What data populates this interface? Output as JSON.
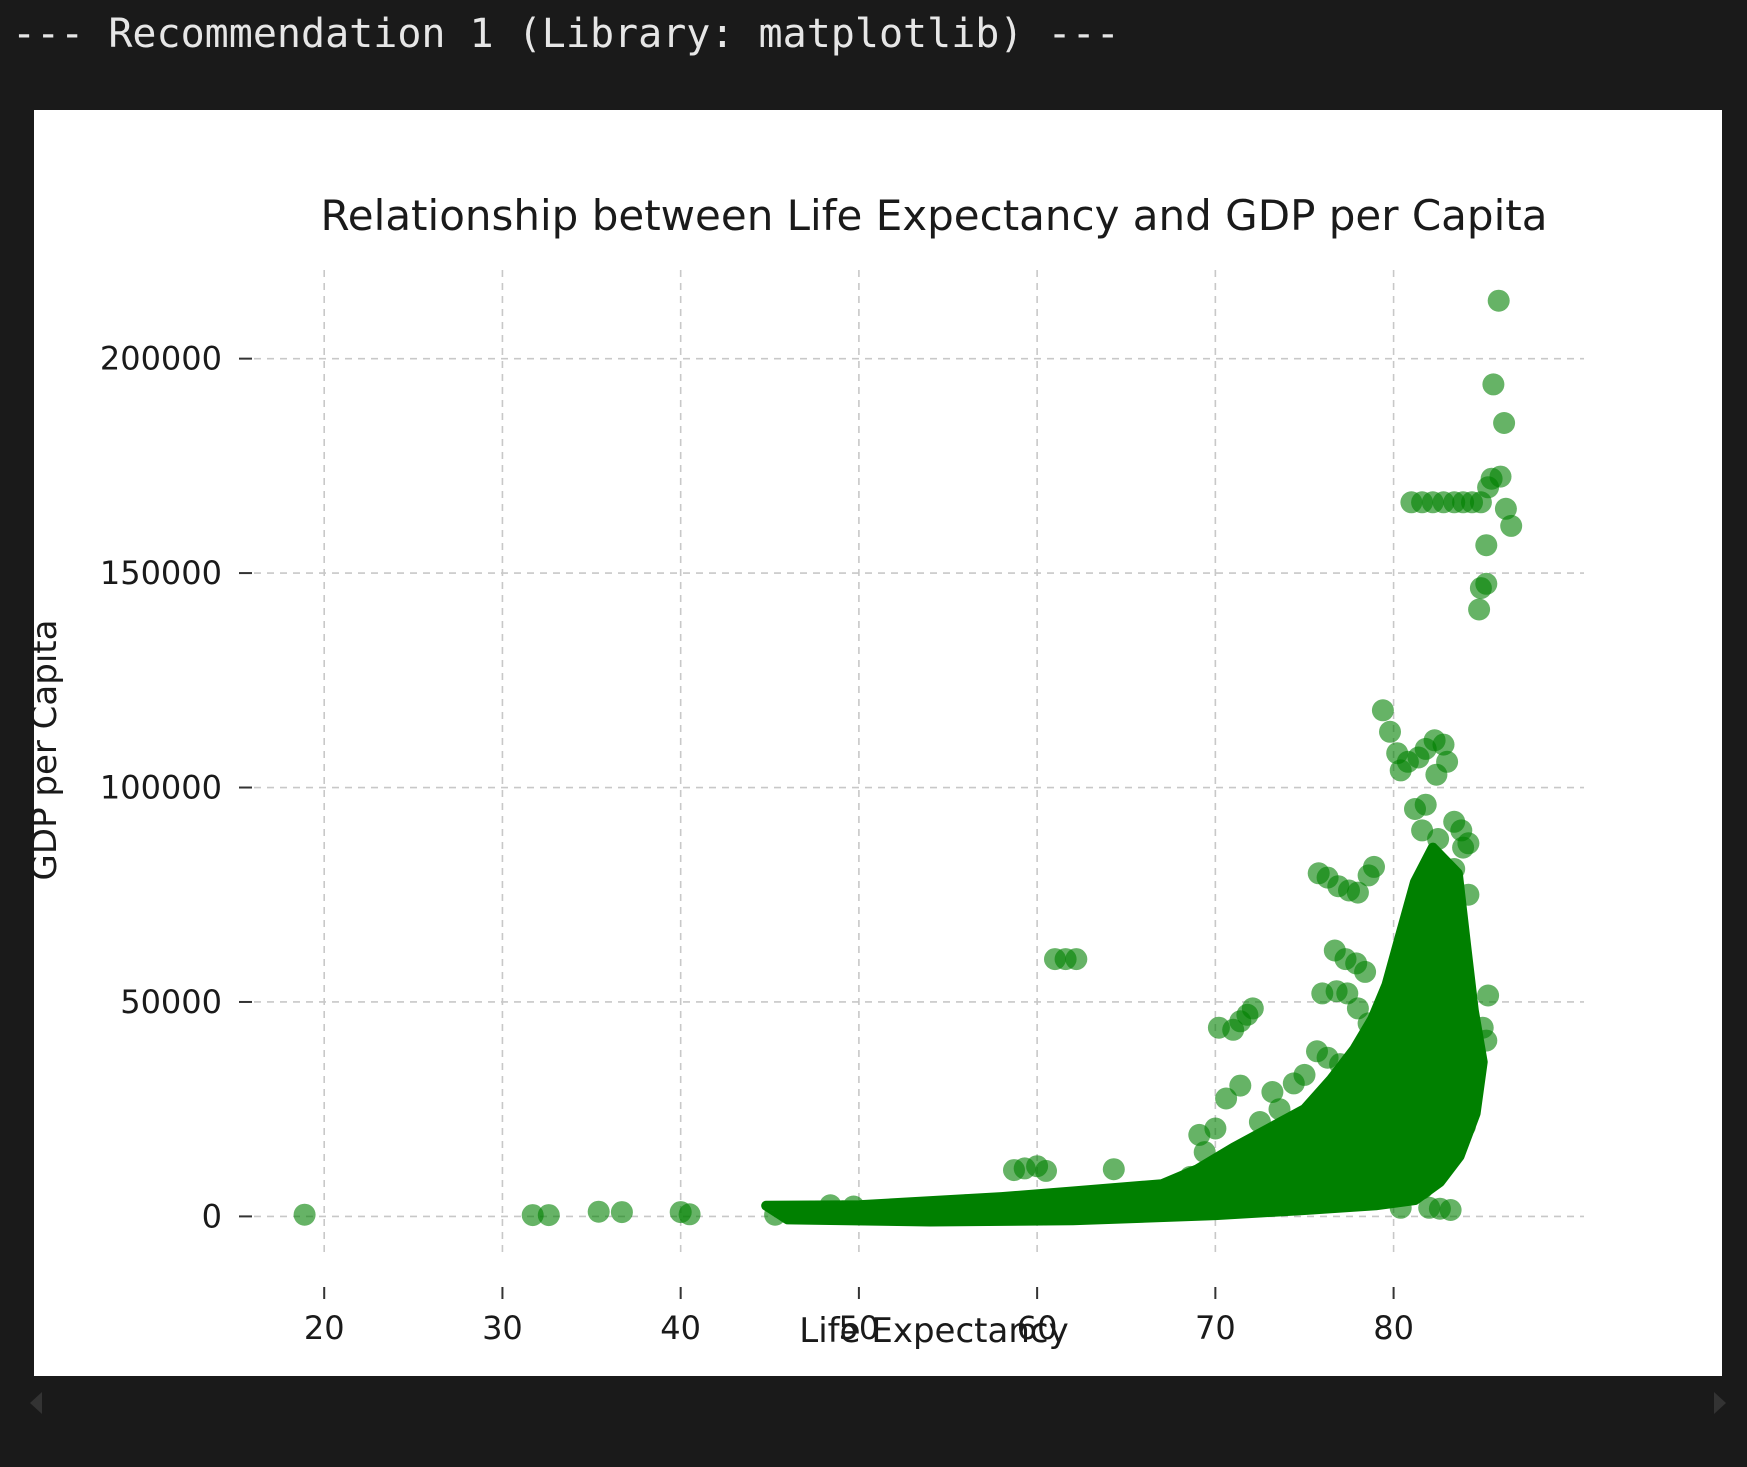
{
  "output": {
    "header": "--- Recommendation 1 (Library: matplotlib) ---"
  },
  "chart_data": {
    "type": "scatter",
    "title": "Relationship between Life Expectancy and GDP per Capita",
    "xlabel": "Life Expectancy",
    "ylabel": "GDP per Capita",
    "xlim": [
      15.5,
      89
    ],
    "ylim": [
      -9000,
      223000
    ],
    "xticks": [
      "20",
      "30",
      "40",
      "50",
      "60",
      "70",
      "80"
    ],
    "yticks": [
      "0",
      "50000",
      "100000",
      "150000",
      "200000"
    ],
    "grid": true,
    "marker_color": "#008000",
    "marker_alpha": 0.6,
    "series": [
      {
        "values": [
          [
            18.9,
            400
          ],
          [
            31.7,
            300
          ],
          [
            32.6,
            300
          ],
          [
            35.4,
            1100
          ],
          [
            36.7,
            1000
          ],
          [
            40.0,
            1000
          ],
          [
            40.5,
            500
          ],
          [
            45.3,
            400
          ],
          [
            46.0,
            900
          ],
          [
            47.1,
            700
          ],
          [
            48.4,
            2600
          ],
          [
            49.1,
            1200
          ],
          [
            49.7,
            2300
          ],
          [
            51.0,
            800
          ],
          [
            52.2,
            1500
          ],
          [
            53.4,
            900
          ],
          [
            54.6,
            1800
          ],
          [
            56.0,
            2600
          ],
          [
            57.1,
            1900
          ],
          [
            58.4,
            2400
          ],
          [
            58.7,
            10800
          ],
          [
            59.3,
            11200
          ],
          [
            60.0,
            11700
          ],
          [
            60.5,
            10600
          ],
          [
            61.0,
            2900
          ],
          [
            62.3,
            2700
          ],
          [
            61.0,
            60000
          ],
          [
            61.6,
            60000
          ],
          [
            62.2,
            60000
          ],
          [
            63.5,
            3400
          ],
          [
            64.3,
            11000
          ],
          [
            65.2,
            3800
          ],
          [
            66.5,
            4400
          ],
          [
            67.8,
            5500
          ],
          [
            68.6,
            9200
          ],
          [
            69.1,
            19000
          ],
          [
            69.4,
            15000
          ],
          [
            70.0,
            20500
          ],
          [
            70.2,
            44000
          ],
          [
            71.0,
            43500
          ],
          [
            71.4,
            45500
          ],
          [
            71.8,
            47000
          ],
          [
            72.1,
            48500
          ],
          [
            70.6,
            27500
          ],
          [
            71.4,
            30500
          ],
          [
            72.5,
            22000
          ],
          [
            72.8,
            16000
          ],
          [
            73.2,
            29000
          ],
          [
            73.6,
            25000
          ],
          [
            74.4,
            31000
          ],
          [
            75.0,
            33000
          ],
          [
            75.7,
            38500
          ],
          [
            76.3,
            37000
          ],
          [
            77.0,
            35500
          ],
          [
            75.8,
            80000
          ],
          [
            76.3,
            79000
          ],
          [
            76.9,
            77000
          ],
          [
            77.5,
            76000
          ],
          [
            78.0,
            75500
          ],
          [
            78.6,
            79500
          ],
          [
            78.9,
            81500
          ],
          [
            76.7,
            62000
          ],
          [
            77.3,
            60000
          ],
          [
            77.9,
            59000
          ],
          [
            78.4,
            57000
          ],
          [
            76.0,
            52000
          ],
          [
            76.8,
            52500
          ],
          [
            77.4,
            52000
          ],
          [
            78.0,
            48500
          ],
          [
            78.6,
            45000
          ],
          [
            79.4,
            118000
          ],
          [
            79.8,
            113000
          ],
          [
            80.2,
            108000
          ],
          [
            80.4,
            104000
          ],
          [
            80.8,
            106000
          ],
          [
            81.4,
            107000
          ],
          [
            81.8,
            109000
          ],
          [
            82.3,
            111000
          ],
          [
            82.8,
            110000
          ],
          [
            83.0,
            106000
          ],
          [
            82.4,
            103000
          ],
          [
            81.2,
            95000
          ],
          [
            81.6,
            90000
          ],
          [
            81.8,
            96000
          ],
          [
            82.5,
            88000
          ],
          [
            83.4,
            92000
          ],
          [
            83.8,
            90000
          ],
          [
            83.9,
            86000
          ],
          [
            84.2,
            87000
          ],
          [
            84.2,
            75000
          ],
          [
            83.4,
            81000
          ],
          [
            82.6,
            78000
          ],
          [
            82.0,
            70000
          ],
          [
            81.6,
            63000
          ],
          [
            80.6,
            61000
          ],
          [
            83.3,
            66000
          ],
          [
            83.5,
            60000
          ],
          [
            82.8,
            58000
          ],
          [
            81.0,
            166500
          ],
          [
            81.6,
            166500
          ],
          [
            82.2,
            166500
          ],
          [
            82.8,
            166500
          ],
          [
            83.4,
            166500
          ],
          [
            83.9,
            166500
          ],
          [
            84.4,
            166500
          ],
          [
            84.9,
            166500
          ],
          [
            85.3,
            170000
          ],
          [
            85.5,
            172000
          ],
          [
            86.0,
            172500
          ],
          [
            86.3,
            165000
          ],
          [
            86.6,
            161000
          ],
          [
            85.2,
            156500
          ],
          [
            85.2,
            147500
          ],
          [
            84.9,
            146500
          ],
          [
            84.8,
            141500
          ],
          [
            85.6,
            194000
          ],
          [
            85.9,
            213500
          ],
          [
            86.2,
            185000
          ],
          [
            85.3,
            51500
          ],
          [
            85.0,
            44000
          ],
          [
            85.2,
            41000
          ],
          [
            84.5,
            38000
          ],
          [
            84.0,
            35000
          ],
          [
            83.6,
            30000
          ],
          [
            83.0,
            26000
          ],
          [
            84.0,
            21000
          ],
          [
            82.0,
            22000
          ],
          [
            80.6,
            18000
          ],
          [
            80.2,
            12000
          ],
          [
            81.1,
            7000
          ],
          [
            81.6,
            6500
          ],
          [
            82.0,
            2000
          ],
          [
            82.6,
            1800
          ],
          [
            83.2,
            1500
          ],
          [
            80.4,
            2000
          ],
          [
            74.0,
            5000
          ],
          [
            75.5,
            6500
          ],
          [
            77.0,
            4800
          ],
          [
            78.5,
            7500
          ],
          [
            79.5,
            9000
          ],
          [
            80.8,
            28000
          ],
          [
            81.5,
            34000
          ],
          [
            82.2,
            40000
          ],
          [
            82.7,
            45000
          ],
          [
            81.3,
            38000
          ],
          [
            80.1,
            30000
          ]
        ]
      }
    ]
  }
}
